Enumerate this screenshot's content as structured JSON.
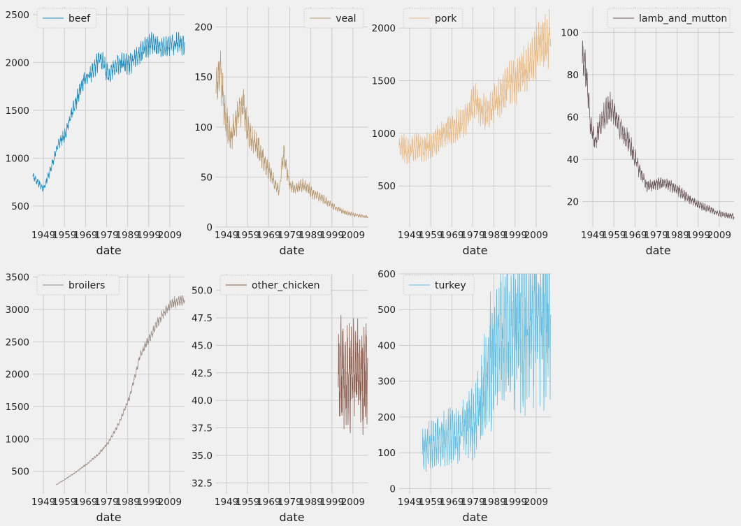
{
  "colors": {
    "background": "#f0f0f0",
    "grid": "#cbcbcb",
    "legend_border": "#cccccc"
  },
  "chart_data": [
    {
      "type": "line",
      "series": [
        {
          "name": "beef"
        }
      ],
      "color": "#1f8ec2",
      "legend_loc": "upper left",
      "xlabel": "date",
      "xlim": [
        1944,
        2016
      ],
      "ylim": [
        280,
        2580
      ],
      "xticks": [
        1949,
        1959,
        1969,
        1979,
        1989,
        1999,
        2009
      ],
      "yticks": [
        500,
        1000,
        1500,
        2000,
        2500
      ],
      "x_start": 1944,
      "x_end": 2016,
      "noise": 0.06,
      "seed": 11,
      "trend": [
        [
          1944,
          820
        ],
        [
          1947,
          730
        ],
        [
          1949,
          680
        ],
        [
          1952,
          850
        ],
        [
          1956,
          1150
        ],
        [
          1959,
          1230
        ],
        [
          1963,
          1500
        ],
        [
          1968,
          1800
        ],
        [
          1972,
          1900
        ],
        [
          1976,
          2050
        ],
        [
          1980,
          1870
        ],
        [
          1985,
          2000
        ],
        [
          1990,
          1980
        ],
        [
          1995,
          2100
        ],
        [
          2000,
          2200
        ],
        [
          2005,
          2150
        ],
        [
          2010,
          2200
        ],
        [
          2016,
          2200
        ]
      ]
    },
    {
      "type": "line",
      "series": [
        {
          "name": "veal"
        }
      ],
      "color": "#b89a72",
      "legend_loc": "upper right",
      "xlabel": "date",
      "xlim": [
        1944,
        2016
      ],
      "ylim": [
        0,
        220
      ],
      "xticks": [
        1949,
        1959,
        1969,
        1979,
        1989,
        1999,
        2009
      ],
      "yticks": [
        0,
        50,
        100,
        150,
        200
      ],
      "x_start": 1944,
      "x_end": 2016,
      "noise": 0.18,
      "seed": 23,
      "trend": [
        [
          1944,
          140
        ],
        [
          1946,
          160
        ],
        [
          1948,
          115
        ],
        [
          1951,
          88
        ],
        [
          1954,
          110
        ],
        [
          1957,
          125
        ],
        [
          1959,
          95
        ],
        [
          1962,
          88
        ],
        [
          1966,
          70
        ],
        [
          1971,
          48
        ],
        [
          1974,
          35
        ],
        [
          1976,
          75
        ],
        [
          1979,
          42
        ],
        [
          1982,
          38
        ],
        [
          1986,
          43
        ],
        [
          1990,
          33
        ],
        [
          1995,
          28
        ],
        [
          2000,
          20
        ],
        [
          2005,
          15
        ],
        [
          2010,
          12
        ],
        [
          2016,
          10
        ]
      ]
    },
    {
      "type": "line",
      "series": [
        {
          "name": "pork"
        }
      ],
      "color": "#e8ba84",
      "legend_loc": "upper left",
      "xlabel": "date",
      "xlim": [
        1944,
        2016
      ],
      "ylim": [
        110,
        2200
      ],
      "xticks": [
        1949,
        1959,
        1969,
        1979,
        1989,
        1999,
        2009
      ],
      "yticks": [
        500,
        1000,
        1500,
        2000
      ],
      "x_start": 1944,
      "x_end": 2016,
      "noise": 0.16,
      "seed": 37,
      "trend": [
        [
          1944,
          900
        ],
        [
          1948,
          820
        ],
        [
          1952,
          880
        ],
        [
          1956,
          850
        ],
        [
          1960,
          900
        ],
        [
          1965,
          1000
        ],
        [
          1970,
          1050
        ],
        [
          1975,
          1100
        ],
        [
          1980,
          1300
        ],
        [
          1985,
          1200
        ],
        [
          1990,
          1300
        ],
        [
          1995,
          1450
        ],
        [
          2000,
          1500
        ],
        [
          2005,
          1650
        ],
        [
          2010,
          1800
        ],
        [
          2016,
          1900
        ]
      ]
    },
    {
      "type": "line",
      "series": [
        {
          "name": "lamb_and_mutton"
        }
      ],
      "color": "#6e5a5c",
      "legend_loc": "upper right",
      "xlabel": "date",
      "xlim": [
        1944,
        2016
      ],
      "ylim": [
        8,
        112
      ],
      "xticks": [
        1949,
        1959,
        1969,
        1979,
        1989,
        1999,
        2009
      ],
      "yticks": [
        20,
        40,
        60,
        80,
        100
      ],
      "x_start": 1944,
      "x_end": 2016,
      "noise": 0.12,
      "seed": 41,
      "trend": [
        [
          1944,
          88
        ],
        [
          1946,
          80
        ],
        [
          1948,
          55
        ],
        [
          1950,
          48
        ],
        [
          1952,
          55
        ],
        [
          1955,
          62
        ],
        [
          1958,
          65
        ],
        [
          1962,
          55
        ],
        [
          1967,
          46
        ],
        [
          1971,
          35
        ],
        [
          1975,
          27
        ],
        [
          1980,
          29
        ],
        [
          1985,
          28
        ],
        [
          1990,
          25
        ],
        [
          1995,
          21
        ],
        [
          2000,
          18
        ],
        [
          2005,
          16
        ],
        [
          2010,
          14
        ],
        [
          2016,
          13
        ]
      ]
    },
    {
      "type": "line",
      "series": [
        {
          "name": "broilers"
        }
      ],
      "color": "#9c8c84",
      "legend_loc": "upper left",
      "xlabel": "date",
      "xlim": [
        1944,
        2016
      ],
      "ylim": [
        150,
        3550
      ],
      "xticks": [
        1949,
        1959,
        1969,
        1979,
        1989,
        1999,
        2009
      ],
      "yticks": [
        500,
        1000,
        1500,
        2000,
        2500,
        3000,
        3500
      ],
      "x_start": 1955,
      "x_end": 2016,
      "noise": 0.03,
      "seed": 53,
      "trend": [
        [
          1955,
          290
        ],
        [
          1960,
          390
        ],
        [
          1965,
          500
        ],
        [
          1970,
          620
        ],
        [
          1975,
          760
        ],
        [
          1980,
          950
        ],
        [
          1985,
          1250
        ],
        [
          1990,
          1650
        ],
        [
          1995,
          2300
        ],
        [
          2000,
          2600
        ],
        [
          2005,
          2900
        ],
        [
          2010,
          3100
        ],
        [
          2016,
          3150
        ]
      ]
    },
    {
      "type": "line",
      "series": [
        {
          "name": "other_chicken"
        }
      ],
      "color": "#8a5a4a",
      "legend_loc": "upper left",
      "xlabel": "date",
      "xlim": [
        1944,
        2016
      ],
      "ylim": [
        31.5,
        51.5
      ],
      "xticks": [
        1949,
        1959,
        1969,
        1979,
        1989,
        1999,
        2009
      ],
      "yticks": [
        32.5,
        35.0,
        37.5,
        40.0,
        42.5,
        45.0,
        47.5,
        50.0
      ],
      "x_start": 2002,
      "x_end": 2016,
      "noise": 0.13,
      "seed": 67,
      "trend": [
        [
          2002,
          42.5
        ],
        [
          2005,
          43
        ],
        [
          2008,
          42
        ],
        [
          2011,
          42.5
        ],
        [
          2014,
          42
        ],
        [
          2016,
          42
        ]
      ]
    },
    {
      "type": "line",
      "series": [
        {
          "name": "turkey"
        }
      ],
      "color": "#5fbfe4",
      "legend_loc": "upper left",
      "xlabel": "date",
      "xlim": [
        1944,
        2016
      ],
      "ylim": [
        -15,
        600
      ],
      "xticks": [
        1949,
        1959,
        1969,
        1979,
        1989,
        1999,
        2009
      ],
      "yticks": [
        0,
        100,
        200,
        300,
        400,
        500,
        600
      ],
      "x_start": 1955,
      "x_end": 2016,
      "noise": 0.6,
      "seed": 79,
      "trend": [
        [
          1955,
          110
        ],
        [
          1960,
          130
        ],
        [
          1965,
          140
        ],
        [
          1970,
          150
        ],
        [
          1975,
          170
        ],
        [
          1980,
          190
        ],
        [
          1985,
          300
        ],
        [
          1990,
          400
        ],
        [
          1995,
          430
        ],
        [
          2000,
          450
        ],
        [
          2005,
          470
        ],
        [
          2010,
          480
        ],
        [
          2016,
          480
        ]
      ]
    }
  ]
}
